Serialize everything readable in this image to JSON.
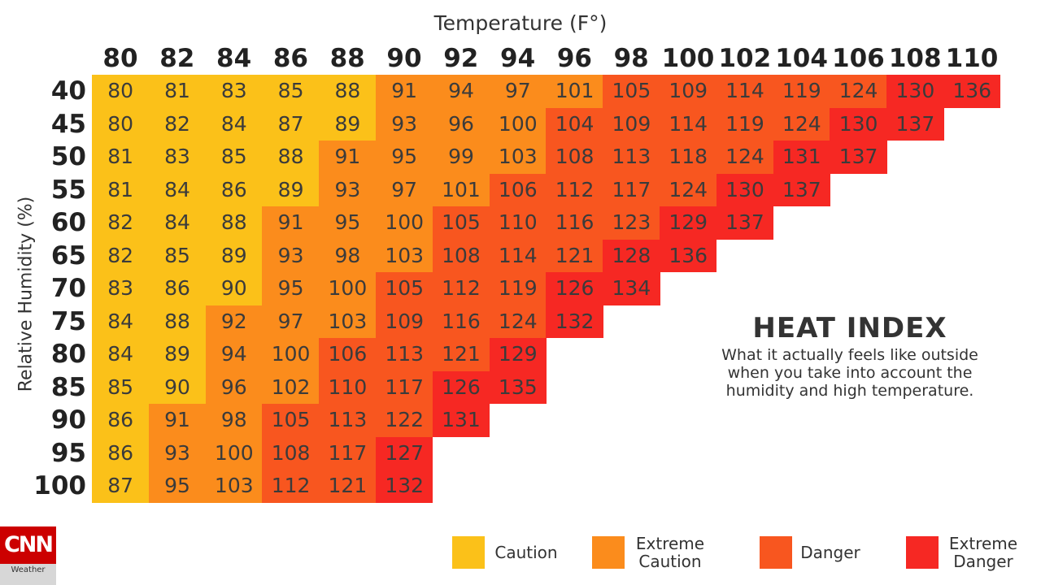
{
  "chart_data": {
    "type": "heatmap",
    "title": "HEAT INDEX",
    "subtitle": "What it actually feels like outside when you take into account the humidity and high temperature.",
    "xlabel": "Temperature (F°)",
    "ylabel": "Relative Humidity (%)",
    "x": [
      80,
      82,
      84,
      86,
      88,
      90,
      92,
      94,
      96,
      98,
      100,
      102,
      104,
      106,
      108,
      110
    ],
    "y": [
      40,
      45,
      50,
      55,
      60,
      65,
      70,
      75,
      80,
      85,
      90,
      95,
      100
    ],
    "values": [
      [
        80,
        81,
        83,
        85,
        88,
        91,
        94,
        97,
        101,
        105,
        109,
        114,
        119,
        124,
        130,
        136
      ],
      [
        80,
        82,
        84,
        87,
        89,
        93,
        96,
        100,
        104,
        109,
        114,
        119,
        124,
        130,
        137
      ],
      [
        81,
        83,
        85,
        88,
        91,
        95,
        99,
        103,
        108,
        113,
        118,
        124,
        131,
        137
      ],
      [
        81,
        84,
        86,
        89,
        93,
        97,
        101,
        106,
        112,
        117,
        124,
        130,
        137
      ],
      [
        82,
        84,
        88,
        91,
        95,
        100,
        105,
        110,
        116,
        123,
        129,
        137
      ],
      [
        82,
        85,
        89,
        93,
        98,
        103,
        108,
        114,
        121,
        128,
        136
      ],
      [
        83,
        86,
        90,
        95,
        100,
        105,
        112,
        119,
        126,
        134
      ],
      [
        84,
        88,
        92,
        97,
        103,
        109,
        116,
        124,
        132
      ],
      [
        84,
        89,
        94,
        100,
        106,
        113,
        121,
        129
      ],
      [
        85,
        90,
        96,
        102,
        110,
        117,
        126,
        135
      ],
      [
        86,
        91,
        98,
        105,
        113,
        122,
        131
      ],
      [
        86,
        93,
        100,
        108,
        117,
        127
      ],
      [
        87,
        95,
        103,
        112,
        121,
        132
      ]
    ],
    "categories_scale": [
      {
        "label": "Caution",
        "min": 80,
        "max": 90,
        "color": "#fbc119"
      },
      {
        "label": "Extreme Caution",
        "min": 91,
        "max": 103,
        "color": "#fb8c1c"
      },
      {
        "label": "Danger",
        "min": 104,
        "max": 124,
        "color": "#f8561f"
      },
      {
        "label": "Extreme Danger",
        "min": 125,
        "max": 137,
        "color": "#f62823"
      }
    ]
  },
  "legend": {
    "caution": "Caution",
    "extreme_caution_1": "Extreme",
    "extreme_caution_2": "Caution",
    "danger": "Danger",
    "extreme_danger_1": "Extreme",
    "extreme_danger_2": "Danger"
  },
  "brand": {
    "logo": "CNN",
    "sub": "Weather",
    "color": "#cc0000"
  }
}
